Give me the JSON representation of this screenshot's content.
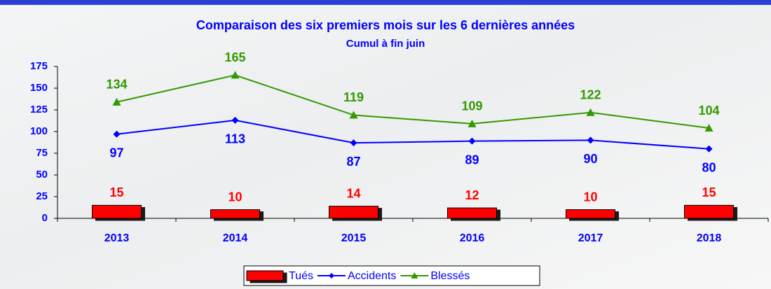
{
  "chart_data": {
    "type": "combo",
    "title": "Comparaison des six premiers mois sur les 6 dernières années",
    "subtitle": "Cumul à fin juin",
    "categories": [
      "2013",
      "2014",
      "2015",
      "2016",
      "2017",
      "2018"
    ],
    "series": [
      {
        "name": "Tués",
        "type": "bar",
        "color": "#ff0000",
        "values": [
          15,
          10,
          14,
          12,
          10,
          15
        ]
      },
      {
        "name": "Accidents",
        "type": "line",
        "marker": "diamond",
        "color": "#0000ff",
        "values": [
          97,
          113,
          87,
          89,
          90,
          80
        ]
      },
      {
        "name": "Blessés",
        "type": "line",
        "marker": "triangle",
        "color": "#339900",
        "values": [
          134,
          165,
          119,
          109,
          122,
          104
        ]
      }
    ],
    "ylim": [
      0,
      175
    ],
    "yticks": [
      0,
      25,
      50,
      75,
      100,
      125,
      150,
      175
    ],
    "grid": false,
    "legend": "bottom"
  }
}
